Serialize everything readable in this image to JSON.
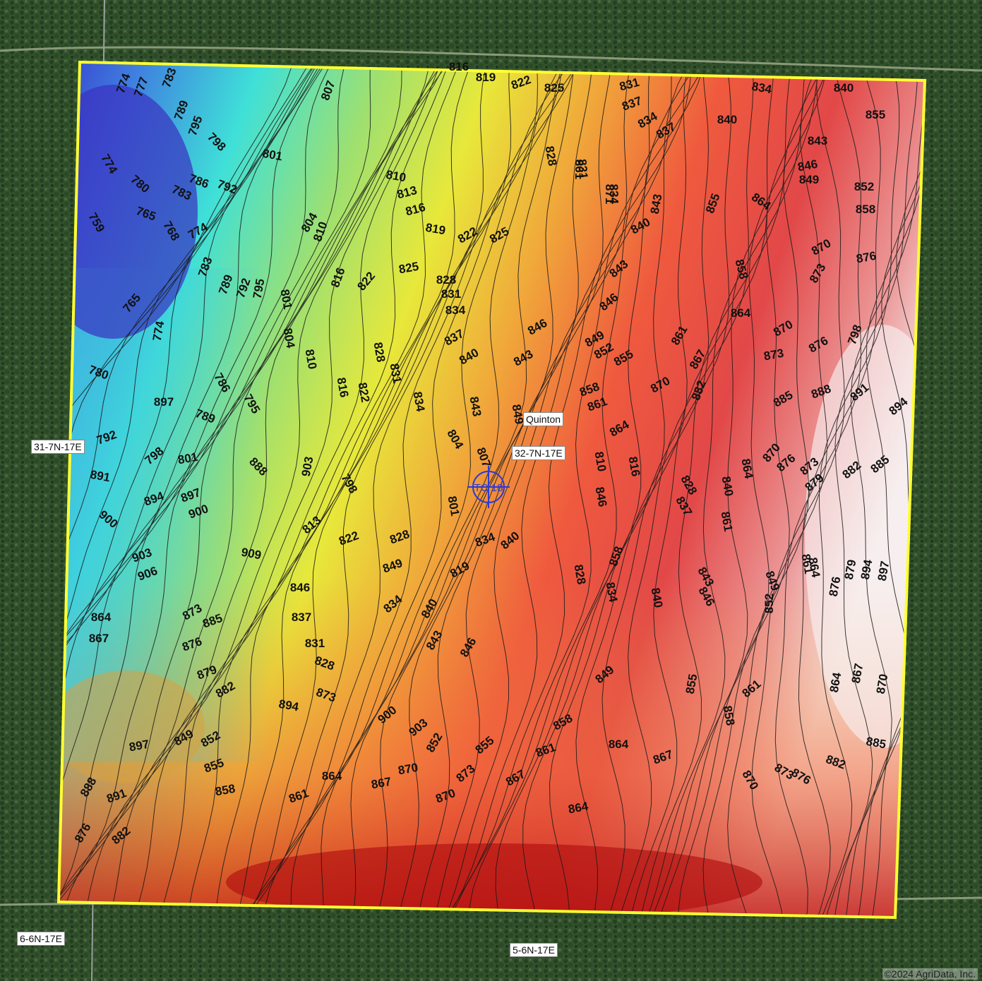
{
  "map": {
    "place_label": "Quinton",
    "section_labels": {
      "west": "31-7N-17E",
      "center": "32-7N-17E",
      "south_west": "6-6N-17E",
      "south": "5-6N-17E"
    },
    "copyright": "©2024 AgriData, Inc.",
    "colors": {
      "boundary": "#ffff33",
      "contour_line": "#1a1a1a",
      "low": "#3d3fd6",
      "mid_low": "#3fe0d8",
      "mid": "#e8e83a",
      "mid_high": "#f08a3a",
      "high": "#e43a3a",
      "peak": "#f4f0f0"
    },
    "icons": [
      "location-marker-icon"
    ],
    "contour_labels": [
      "774",
      "777",
      "783",
      "789",
      "795",
      "798",
      "807",
      "816",
      "819",
      "822",
      "825",
      "831",
      "837",
      "834",
      "840",
      "834",
      "837",
      "840",
      "843",
      "846",
      "849",
      "852",
      "855",
      "858",
      "864",
      "861",
      "871",
      "774",
      "780",
      "783",
      "786",
      "792",
      "801",
      "810",
      "813",
      "816",
      "828",
      "831",
      "834",
      "843",
      "759",
      "765",
      "768",
      "774",
      "804",
      "819",
      "822",
      "825",
      "840",
      "855",
      "858",
      "870",
      "873",
      "876",
      "765",
      "783",
      "789",
      "792",
      "795",
      "810",
      "816",
      "822",
      "825",
      "828",
      "831",
      "843",
      "846",
      "864",
      "870",
      "873",
      "876",
      "798",
      "774",
      "801",
      "804",
      "810",
      "828",
      "831",
      "834",
      "837",
      "840",
      "843",
      "846",
      "849",
      "852",
      "855",
      "861",
      "867",
      "780",
      "786",
      "795",
      "816",
      "822",
      "834",
      "843",
      "849",
      "858",
      "861",
      "864",
      "870",
      "882",
      "885",
      "888",
      "891",
      "894",
      "897",
      "789",
      "792",
      "798",
      "801",
      "804",
      "807",
      "810",
      "816",
      "828",
      "837",
      "840",
      "864",
      "870",
      "876",
      "873",
      "879",
      "882",
      "885",
      "888",
      "891",
      "894",
      "897",
      "900",
      "903",
      "798",
      "801",
      "813",
      "822",
      "828",
      "834",
      "840",
      "846",
      "858",
      "861",
      "864",
      "876",
      "879",
      "894",
      "897",
      "900",
      "903",
      "906",
      "909",
      "846",
      "849",
      "819",
      "828",
      "834",
      "840",
      "843",
      "846",
      "849",
      "852",
      "861",
      "864",
      "867",
      "873",
      "876",
      "885",
      "837",
      "831",
      "828",
      "834",
      "840",
      "843",
      "846",
      "849",
      "855",
      "858",
      "861",
      "864",
      "867",
      "870",
      "873",
      "879",
      "882",
      "894",
      "900",
      "903",
      "852",
      "855",
      "858",
      "861",
      "864",
      "867",
      "870",
      "873",
      "876",
      "882",
      "885",
      "888",
      "891",
      "897",
      "849",
      "852",
      "855",
      "858",
      "861",
      "864",
      "867",
      "870",
      "873",
      "870",
      "867",
      "864",
      "876",
      "882"
    ]
  }
}
